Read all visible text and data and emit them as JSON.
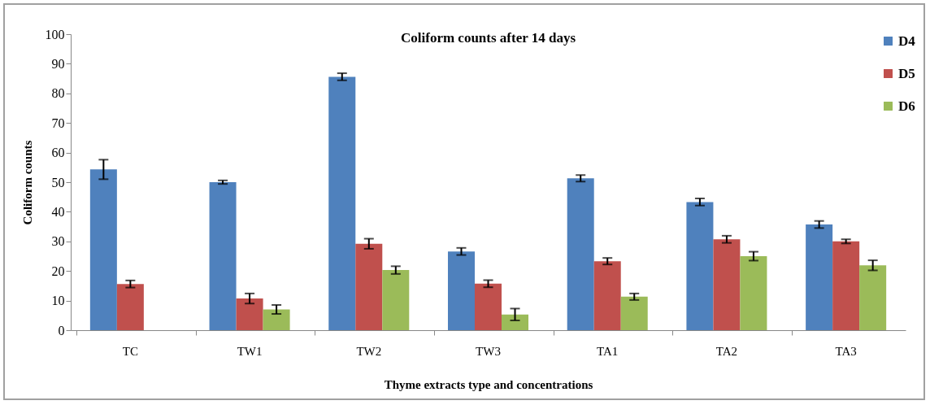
{
  "chart_data": {
    "type": "bar",
    "title": "Coliform counts after 14 days",
    "xlabel": "Thyme extracts type and concentrations",
    "ylabel": "Coliform counts",
    "categories": [
      "TC",
      "TW1",
      "TW2",
      "TW3",
      "TA1",
      "TA2",
      "TA3"
    ],
    "series": [
      {
        "name": "D4",
        "color": "#4f81bd",
        "values": [
          54.3,
          50.0,
          85.6,
          26.6,
          51.3,
          43.3,
          35.7
        ],
        "errors": [
          3.3,
          0.6,
          1.2,
          1.2,
          1.1,
          1.2,
          1.2
        ]
      },
      {
        "name": "D5",
        "color": "#c0504d",
        "values": [
          15.6,
          10.7,
          29.2,
          15.7,
          23.3,
          30.7,
          30.0
        ],
        "errors": [
          1.2,
          1.7,
          1.7,
          1.2,
          1.1,
          1.2,
          0.7
        ]
      },
      {
        "name": "D6",
        "color": "#9bbb59",
        "values": [
          0,
          7.0,
          20.3,
          5.3,
          11.3,
          25.0,
          21.9
        ],
        "errors": [
          null,
          1.5,
          1.3,
          2.0,
          1.1,
          1.5,
          1.7
        ]
      }
    ],
    "ylim": [
      0,
      100
    ],
    "yticks": [
      0,
      10,
      20,
      30,
      40,
      50,
      60,
      70,
      80,
      90,
      100
    ],
    "grid": false,
    "legend": "right"
  }
}
